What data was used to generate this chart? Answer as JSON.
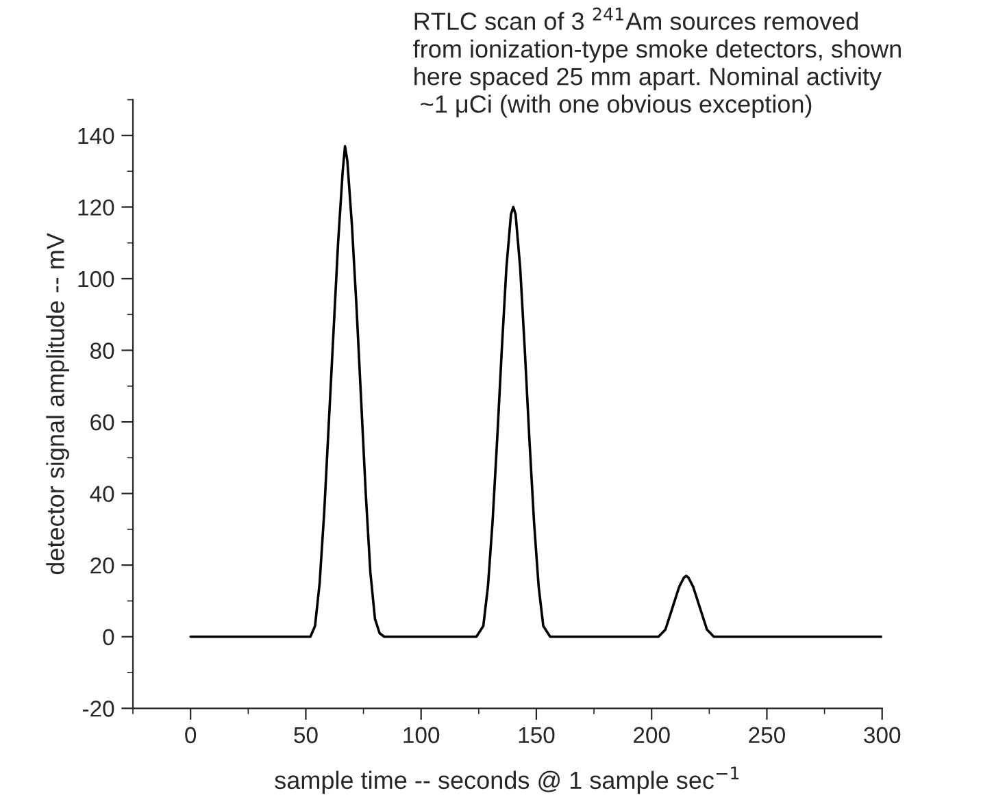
{
  "chart_data": {
    "type": "line",
    "title": "RTLC scan of 3 $^{241}$Am sources removed\nfrom ionization-type smoke detectors, shown\nhere spaced 25 mm apart. Nominal activity\n ~1 μCi (with one obvious exception)",
    "xlabel": "sample time -- seconds @ 1 sample sec$^{−1}$",
    "ylabel": "detector signal amplitude -- mV",
    "series": [
      {
        "color": "#000000",
        "x": [
          0,
          52,
          54,
          56,
          58,
          60,
          62,
          64,
          66,
          67,
          68,
          70,
          72,
          74,
          76,
          78,
          80,
          82,
          84,
          124,
          127,
          129,
          131,
          133,
          135,
          137,
          139,
          140,
          141,
          143,
          145,
          147,
          149,
          151,
          153,
          156,
          203,
          206,
          209,
          212,
          214,
          215,
          216,
          218,
          221,
          224,
          227,
          300
        ],
        "values": [
          0,
          0,
          3,
          15,
          35,
          60,
          85,
          110,
          130,
          137,
          133,
          115,
          92,
          66,
          40,
          18,
          5,
          1,
          0,
          0,
          3,
          14,
          32,
          55,
          80,
          103,
          118,
          120,
          118,
          103,
          80,
          55,
          32,
          14,
          3,
          0,
          0,
          2,
          8,
          14,
          16.5,
          17,
          16.5,
          14,
          8,
          2,
          0,
          0
        ]
      }
    ],
    "xlim": [
      -25,
      300
    ],
    "xticks": [
      0,
      50,
      100,
      150,
      200,
      250,
      300
    ],
    "ylim": [
      -20,
      150
    ],
    "yticks": [
      -20,
      0,
      20,
      40,
      60,
      80,
      100,
      120,
      140
    ],
    "grid": false,
    "legend": false,
    "marker": "none",
    "line_style": "solid"
  }
}
